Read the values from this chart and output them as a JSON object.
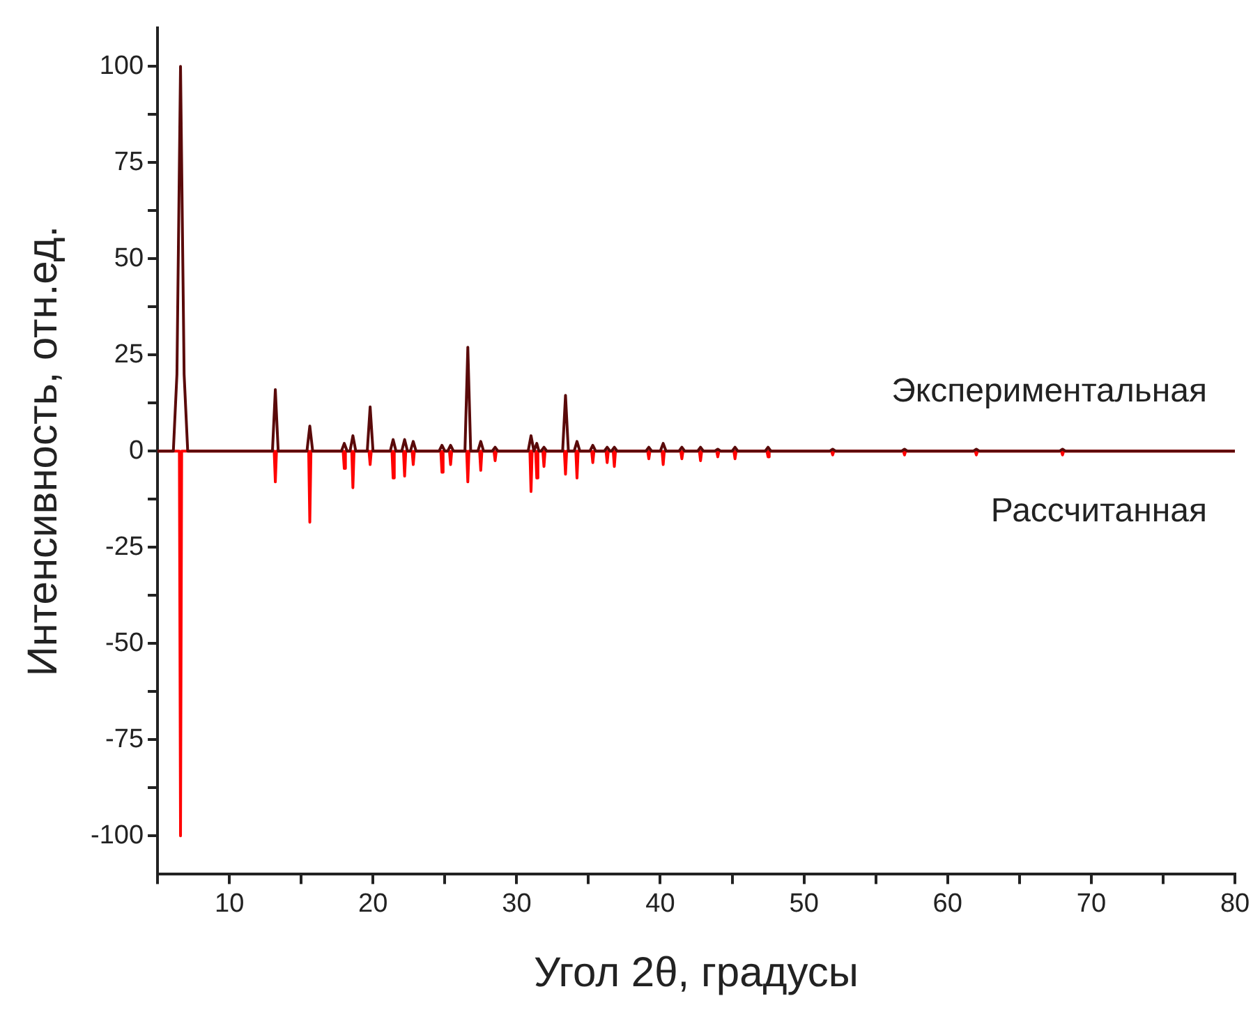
{
  "chart_data": {
    "type": "line",
    "xlabel": "Угол 2θ, градусы",
    "ylabel": "Интенсивность, отн.ед.",
    "xlim": [
      5,
      80
    ],
    "ylim": [
      -110,
      110
    ],
    "xticks": [
      {
        "value": 5,
        "label": null
      },
      10,
      {
        "value": 15,
        "label": null
      },
      20,
      {
        "value": 25,
        "label": null
      },
      30,
      {
        "value": 35,
        "label": null
      },
      40,
      {
        "value": 45,
        "label": null
      },
      50,
      {
        "value": 55,
        "label": null
      },
      60,
      {
        "value": 65,
        "label": null
      },
      70,
      {
        "value": 75,
        "label": null
      },
      80
    ],
    "yticks": [
      -100,
      {
        "value": -87.5,
        "label": null
      },
      -75,
      {
        "value": -62.5,
        "label": null
      },
      -50,
      {
        "value": -37.5,
        "label": null
      },
      -25,
      {
        "value": -12.5,
        "label": null
      },
      0,
      {
        "value": 12.5,
        "label": null
      },
      25,
      {
        "value": 37.5,
        "label": null
      },
      50,
      {
        "value": 62.5,
        "label": null
      },
      75,
      {
        "value": 87.5,
        "label": null
      },
      100
    ],
    "grid": false,
    "legend": false,
    "marker": "none",
    "line_style": "solid",
    "series": [
      {
        "name": "Экспериментальная",
        "color": "#5a0a0a",
        "x": [
          5,
          6.1,
          6.35,
          6.6,
          6.85,
          7.1,
          13.0,
          13.2,
          13.4,
          15.4,
          15.6,
          15.8,
          17.8,
          18.0,
          18.2,
          18.4,
          18.6,
          18.8,
          19.6,
          19.8,
          20.0,
          21.2,
          21.4,
          21.6,
          22.0,
          22.2,
          22.4,
          22.6,
          22.8,
          23.0,
          24.6,
          24.8,
          25.0,
          25.2,
          25.4,
          25.6,
          26.4,
          26.6,
          26.8,
          27.3,
          27.5,
          27.7,
          28.3,
          28.5,
          28.7,
          30.8,
          31.0,
          31.2,
          31.25,
          31.4,
          31.55,
          31.7,
          31.9,
          32.1,
          33.2,
          33.4,
          33.6,
          34.0,
          34.2,
          34.4,
          35.1,
          35.3,
          35.5,
          36.1,
          36.3,
          36.5,
          36.6,
          36.8,
          37.0,
          39.0,
          39.2,
          39.4,
          40.0,
          40.2,
          40.4,
          41.3,
          41.5,
          41.7,
          42.6,
          42.8,
          43.0,
          43.8,
          44.0,
          44.2,
          45.0,
          45.2,
          45.4,
          47.3,
          47.5,
          47.7,
          51.8,
          52.0,
          52.2,
          56.8,
          57.0,
          57.2,
          61.8,
          62.0,
          62.2,
          67.8,
          68.0,
          68.2,
          80
        ],
        "values": [
          0,
          0,
          20,
          100,
          20,
          0,
          0,
          16,
          0,
          0,
          6.5,
          0,
          0,
          2,
          0,
          0,
          4,
          0,
          0,
          11.5,
          0,
          0,
          3,
          0,
          0,
          3,
          0,
          0,
          2.5,
          0,
          0,
          1.5,
          0,
          0,
          1.5,
          0,
          0,
          27,
          0,
          0,
          2.5,
          0,
          0,
          1,
          0,
          0,
          4,
          0,
          0,
          2,
          0,
          0,
          1,
          0,
          0,
          14.5,
          0,
          0,
          2.5,
          0,
          0,
          1.5,
          0,
          0,
          1,
          0,
          0,
          1,
          0,
          0,
          1,
          0,
          0,
          2,
          0,
          0,
          1,
          0,
          0,
          1,
          0,
          0,
          0.5,
          0,
          0,
          1,
          0,
          0,
          1,
          0,
          0,
          0.5,
          0,
          0,
          0.5,
          0,
          0,
          0.5,
          0,
          0,
          0.5,
          0,
          0
        ]
      },
      {
        "name": "Рассчитанная",
        "color": "#ff0000",
        "x": [
          5,
          6.52,
          6.6,
          6.68,
          13.12,
          13.2,
          13.28,
          15.52,
          15.6,
          15.68,
          17.92,
          18.0,
          18.08,
          18.52,
          18.6,
          18.68,
          19.72,
          19.8,
          19.88,
          21.32,
          21.4,
          21.48,
          22.12,
          22.2,
          22.28,
          22.72,
          22.8,
          22.88,
          24.72,
          24.8,
          24.88,
          25.32,
          25.4,
          25.48,
          26.52,
          26.6,
          26.68,
          27.42,
          27.5,
          27.58,
          28.42,
          28.5,
          28.58,
          30.92,
          31.0,
          31.08,
          31.32,
          31.4,
          31.48,
          31.82,
          31.9,
          31.98,
          33.32,
          33.4,
          33.48,
          34.12,
          34.2,
          34.28,
          35.22,
          35.3,
          35.38,
          36.22,
          36.3,
          36.38,
          36.72,
          36.8,
          36.88,
          39.12,
          39.2,
          39.28,
          40.12,
          40.2,
          40.28,
          41.42,
          41.5,
          41.58,
          42.72,
          42.8,
          42.88,
          43.92,
          44.0,
          44.08,
          45.12,
          45.2,
          45.28,
          47.42,
          47.5,
          47.58,
          51.92,
          52.0,
          52.08,
          56.92,
          57.0,
          57.08,
          61.92,
          62.0,
          62.08,
          67.92,
          68.0,
          68.08,
          80
        ],
        "values": [
          0,
          0,
          -100,
          0,
          0,
          -8,
          0,
          0,
          -18.5,
          0,
          0,
          -4.5,
          0,
          0,
          -9.5,
          0,
          0,
          -3.5,
          0,
          0,
          -7,
          0,
          0,
          -6.5,
          0,
          0,
          -3.5,
          0,
          0,
          -5.5,
          0,
          0,
          -3.5,
          0,
          0,
          -8,
          0,
          0,
          -5,
          0,
          0,
          -2.5,
          0,
          0,
          -10.5,
          0,
          0,
          -7,
          0,
          0,
          -4,
          0,
          0,
          -6,
          0,
          0,
          -7,
          0,
          0,
          -3,
          0,
          0,
          -3,
          0,
          0,
          -4,
          0,
          0,
          -2,
          0,
          0,
          -3.5,
          0,
          0,
          -2,
          0,
          0,
          -2.5,
          0,
          0,
          -1.5,
          0,
          0,
          -2,
          0,
          0,
          -1.5,
          0,
          0,
          -1,
          0,
          0,
          -1,
          0,
          0,
          -1,
          0,
          0,
          -1,
          0,
          0
        ]
      }
    ]
  }
}
